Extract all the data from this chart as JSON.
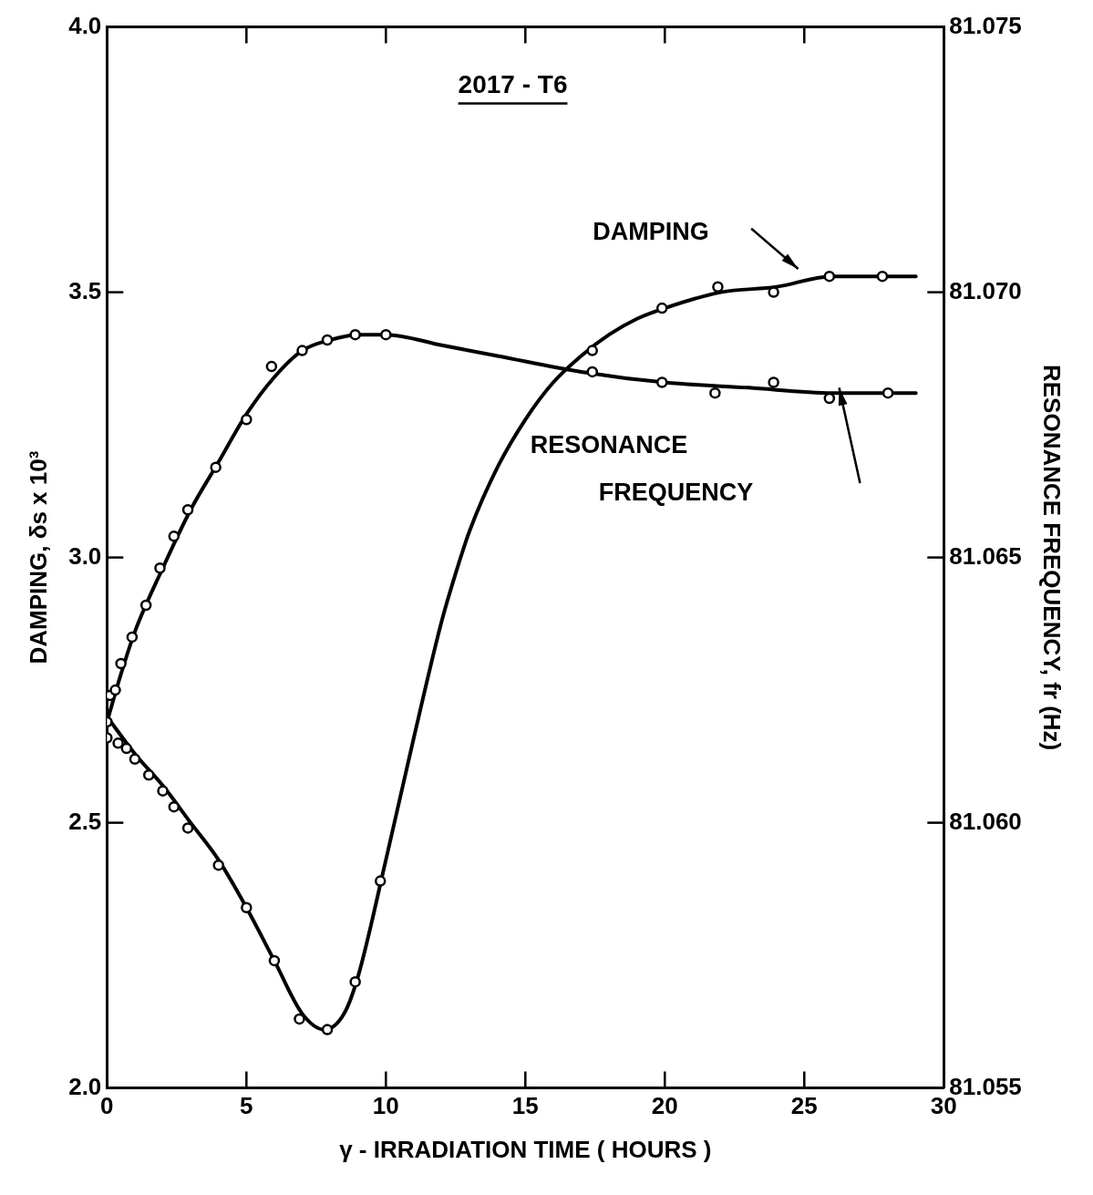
{
  "chart_data": {
    "type": "scatter",
    "title": "2017 - T6",
    "xlabel": "γ - IRRADIATION TIME ( HOURS )",
    "ylabel": "DAMPING, δs x 10³",
    "y2label": "RESONANCE FREQUENCY, fr (Hz)",
    "xlim": [
      0,
      30
    ],
    "xticks": [
      0,
      5,
      10,
      15,
      20,
      25,
      30
    ],
    "ylim": [
      2.0,
      4.0
    ],
    "yticks": [
      {
        "value": 2,
        "label": "2.0"
      },
      {
        "value": 2.5,
        "label": "2.5"
      },
      {
        "value": 3,
        "label": "3.0"
      },
      {
        "value": 3.5,
        "label": "3.5"
      },
      {
        "value": 4,
        "label": "4.0"
      }
    ],
    "y2lim": [
      81.055,
      81.075
    ],
    "y2ticks": [
      81.055,
      {
        "value": 81.06,
        "label": "81.060"
      },
      81.065,
      {
        "value": 81.07,
        "label": "81.070"
      },
      81.075
    ],
    "grid": false,
    "legend": false,
    "marker": "circle",
    "line_style": "solid",
    "series": [
      {
        "name": "DAMPING",
        "color": "#000000",
        "x": [
          0,
          0.4,
          0.7,
          1.0,
          1.5,
          2.0,
          2.4,
          2.9,
          4.0,
          5.0,
          6.0,
          6.9,
          7.9,
          8.9,
          9.8,
          17.4,
          19.9,
          21.9,
          23.9,
          25.9,
          27.8
        ],
        "values": [
          2.66,
          2.65,
          2.64,
          2.62,
          2.59,
          2.56,
          2.53,
          2.49,
          2.42,
          2.34,
          2.24,
          2.13,
          2.11,
          2.2,
          2.39,
          3.39,
          3.47,
          3.51,
          3.5,
          3.53,
          3.53
        ]
      },
      {
        "name": "RESONANCE FREQUENCY",
        "color": "#000000",
        "axis": "y2",
        "x": [
          0,
          0.1,
          0.3,
          0.5,
          0.9,
          1.4,
          1.9,
          2.4,
          2.9,
          3.9,
          5.0,
          5.9,
          7.0,
          7.9,
          8.9,
          10.0,
          17.4,
          19.9,
          21.8,
          23.9,
          25.9,
          28.0
        ],
        "values": [
          81.0619,
          81.0624,
          81.0625,
          81.063,
          81.0635,
          81.0641,
          81.0648,
          81.0654,
          81.0659,
          81.0667,
          81.0676,
          81.0686,
          81.0689,
          81.0691,
          81.0692,
          81.0692,
          81.0685,
          81.0683,
          81.0681,
          81.0683,
          81.068,
          81.0681
        ]
      },
      {
        "type": "line",
        "marker": "none",
        "color": "#000000",
        "x": [
          0,
          1,
          2,
          3,
          4,
          5,
          6,
          7,
          7.8,
          8.5,
          9,
          10,
          11,
          12,
          12.5,
          13,
          14,
          15,
          16,
          17,
          18,
          19,
          20,
          22,
          24,
          26,
          29
        ],
        "values": [
          2.7,
          2.63,
          2.57,
          2.5,
          2.43,
          2.34,
          2.24,
          2.14,
          2.11,
          2.14,
          2.21,
          2.43,
          2.66,
          2.88,
          2.97,
          3.05,
          3.17,
          3.26,
          3.33,
          3.38,
          3.42,
          3.45,
          3.47,
          3.5,
          3.51,
          3.53,
          3.53
        ]
      },
      {
        "type": "line",
        "marker": "none",
        "color": "#000000",
        "axis": "y2",
        "x": [
          0,
          0.5,
          1,
          2,
          3,
          4,
          5,
          6,
          7,
          8,
          9,
          10,
          12,
          14,
          17,
          20,
          23,
          26,
          29
        ],
        "values": [
          81.0619,
          81.0628,
          81.0636,
          81.0648,
          81.0659,
          81.0668,
          81.0677,
          81.0684,
          81.0689,
          81.0691,
          81.0692,
          81.0692,
          81.069,
          81.0688,
          81.0685,
          81.0683,
          81.0682,
          81.0681,
          81.0681
        ]
      }
    ]
  }
}
